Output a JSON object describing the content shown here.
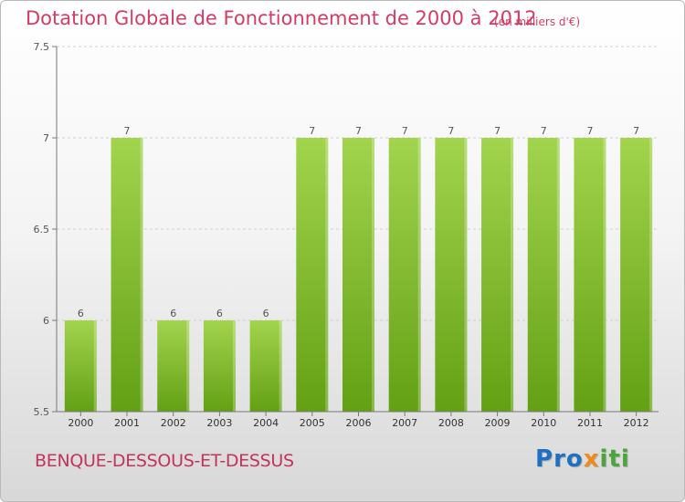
{
  "header": {
    "title": "Dotation Globale de Fonctionnement de 2000 à 2012",
    "subtitle": "(en milliers d'€)"
  },
  "footer": {
    "commune": "BENQUE-DESSOUS-ET-DESSUS",
    "logo_letters": [
      {
        "char": "P",
        "color": "#1f6fc2"
      },
      {
        "char": "r",
        "color": "#1f6fc2"
      },
      {
        "char": "o",
        "color": "#1f6fc2"
      },
      {
        "char": "x",
        "color": "#f08a1c"
      },
      {
        "char": "i",
        "color": "#4aa63b"
      },
      {
        "char": "t",
        "color": "#4aa63b"
      },
      {
        "char": "i",
        "color": "#4aa63b"
      }
    ]
  },
  "colors": {
    "bar_top": "#a2d44e",
    "bar_bottom": "#63a014",
    "title": "#d63c63"
  },
  "chart_data": {
    "type": "bar",
    "title": "Dotation Globale de Fonctionnement de 2000 à 2012",
    "subtitle": "(en milliers d'€)",
    "categories": [
      "2000",
      "2001",
      "2002",
      "2003",
      "2004",
      "2005",
      "2006",
      "2007",
      "2008",
      "2009",
      "2010",
      "2011",
      "2012"
    ],
    "values": [
      6,
      7,
      6,
      6,
      6,
      7,
      7,
      7,
      7,
      7,
      7,
      7,
      7
    ],
    "value_labels": [
      "6",
      "7",
      "6",
      "6",
      "6",
      "7",
      "7",
      "7",
      "7",
      "7",
      "7",
      "7",
      "7"
    ],
    "ylim": [
      5.5,
      7.5
    ],
    "yticks": [
      5.5,
      6,
      6.5,
      7,
      7.5
    ],
    "ytick_labels": [
      "5.5",
      "6",
      "6.5",
      "7",
      "7.5"
    ],
    "grid": true,
    "legend": "none"
  }
}
